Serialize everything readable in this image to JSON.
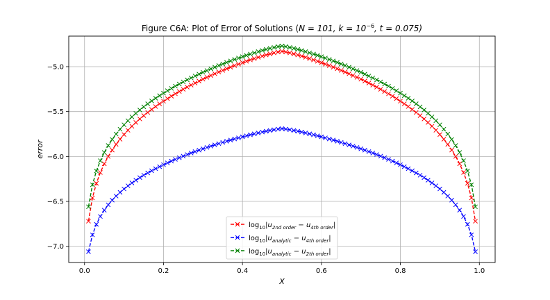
{
  "chart_data": {
    "type": "line",
    "title_prefix": "Figure C6A: Plot of Error of Solutions (",
    "title_math": {
      "N": "N = 101, ",
      "k_base": "k = 10",
      "k_exp": "−6",
      "t": ", t = 0.075)"
    },
    "xlabel": "X",
    "ylabel": "error",
    "xlim": [
      -0.04,
      1.04
    ],
    "ylim": [
      -7.18,
      -4.66
    ],
    "xticks": [
      0.0,
      0.2,
      0.4,
      0.6,
      0.8,
      1.0
    ],
    "yticks": [
      -7.0,
      -6.5,
      -6.0,
      -5.5,
      -5.0
    ],
    "xtick_labels": [
      "0.0",
      "0.2",
      "0.4",
      "0.6",
      "0.8",
      "1.0"
    ],
    "ytick_labels": [
      "−7.0",
      "−6.5",
      "−6.0",
      "−5.5",
      "−5.0"
    ],
    "grid": true,
    "legend_position": "lower-center",
    "x_start": 0.01,
    "x_end": 0.99,
    "x_step": 0.01,
    "series": [
      {
        "key": "s1",
        "color": "#ff0000",
        "peak": -4.83,
        "offset": 2.0,
        "legend": {
          "lead": "log",
          "base": "10",
          "open": "|u",
          "sub1": "2nd order",
          "mid": " − u",
          "sub2": "4th order",
          "close": "|"
        }
      },
      {
        "key": "s2",
        "color": "#0000ff",
        "peak": -5.69,
        "offset": 1.366,
        "legend": {
          "lead": "log",
          "base": "10",
          "open": "|u",
          "sub1": "analytic",
          "mid": " − u",
          "sub2": "4th order",
          "close": "|"
        }
      },
      {
        "key": "s3",
        "color": "#008000",
        "peak": -4.77,
        "offset": 1.777,
        "legend": {
          "lead": "log",
          "base": "10",
          "open": "|u",
          "sub1": "analytic",
          "mid": " − u",
          "sub2": "2th order",
          "close": "|"
        }
      }
    ]
  }
}
